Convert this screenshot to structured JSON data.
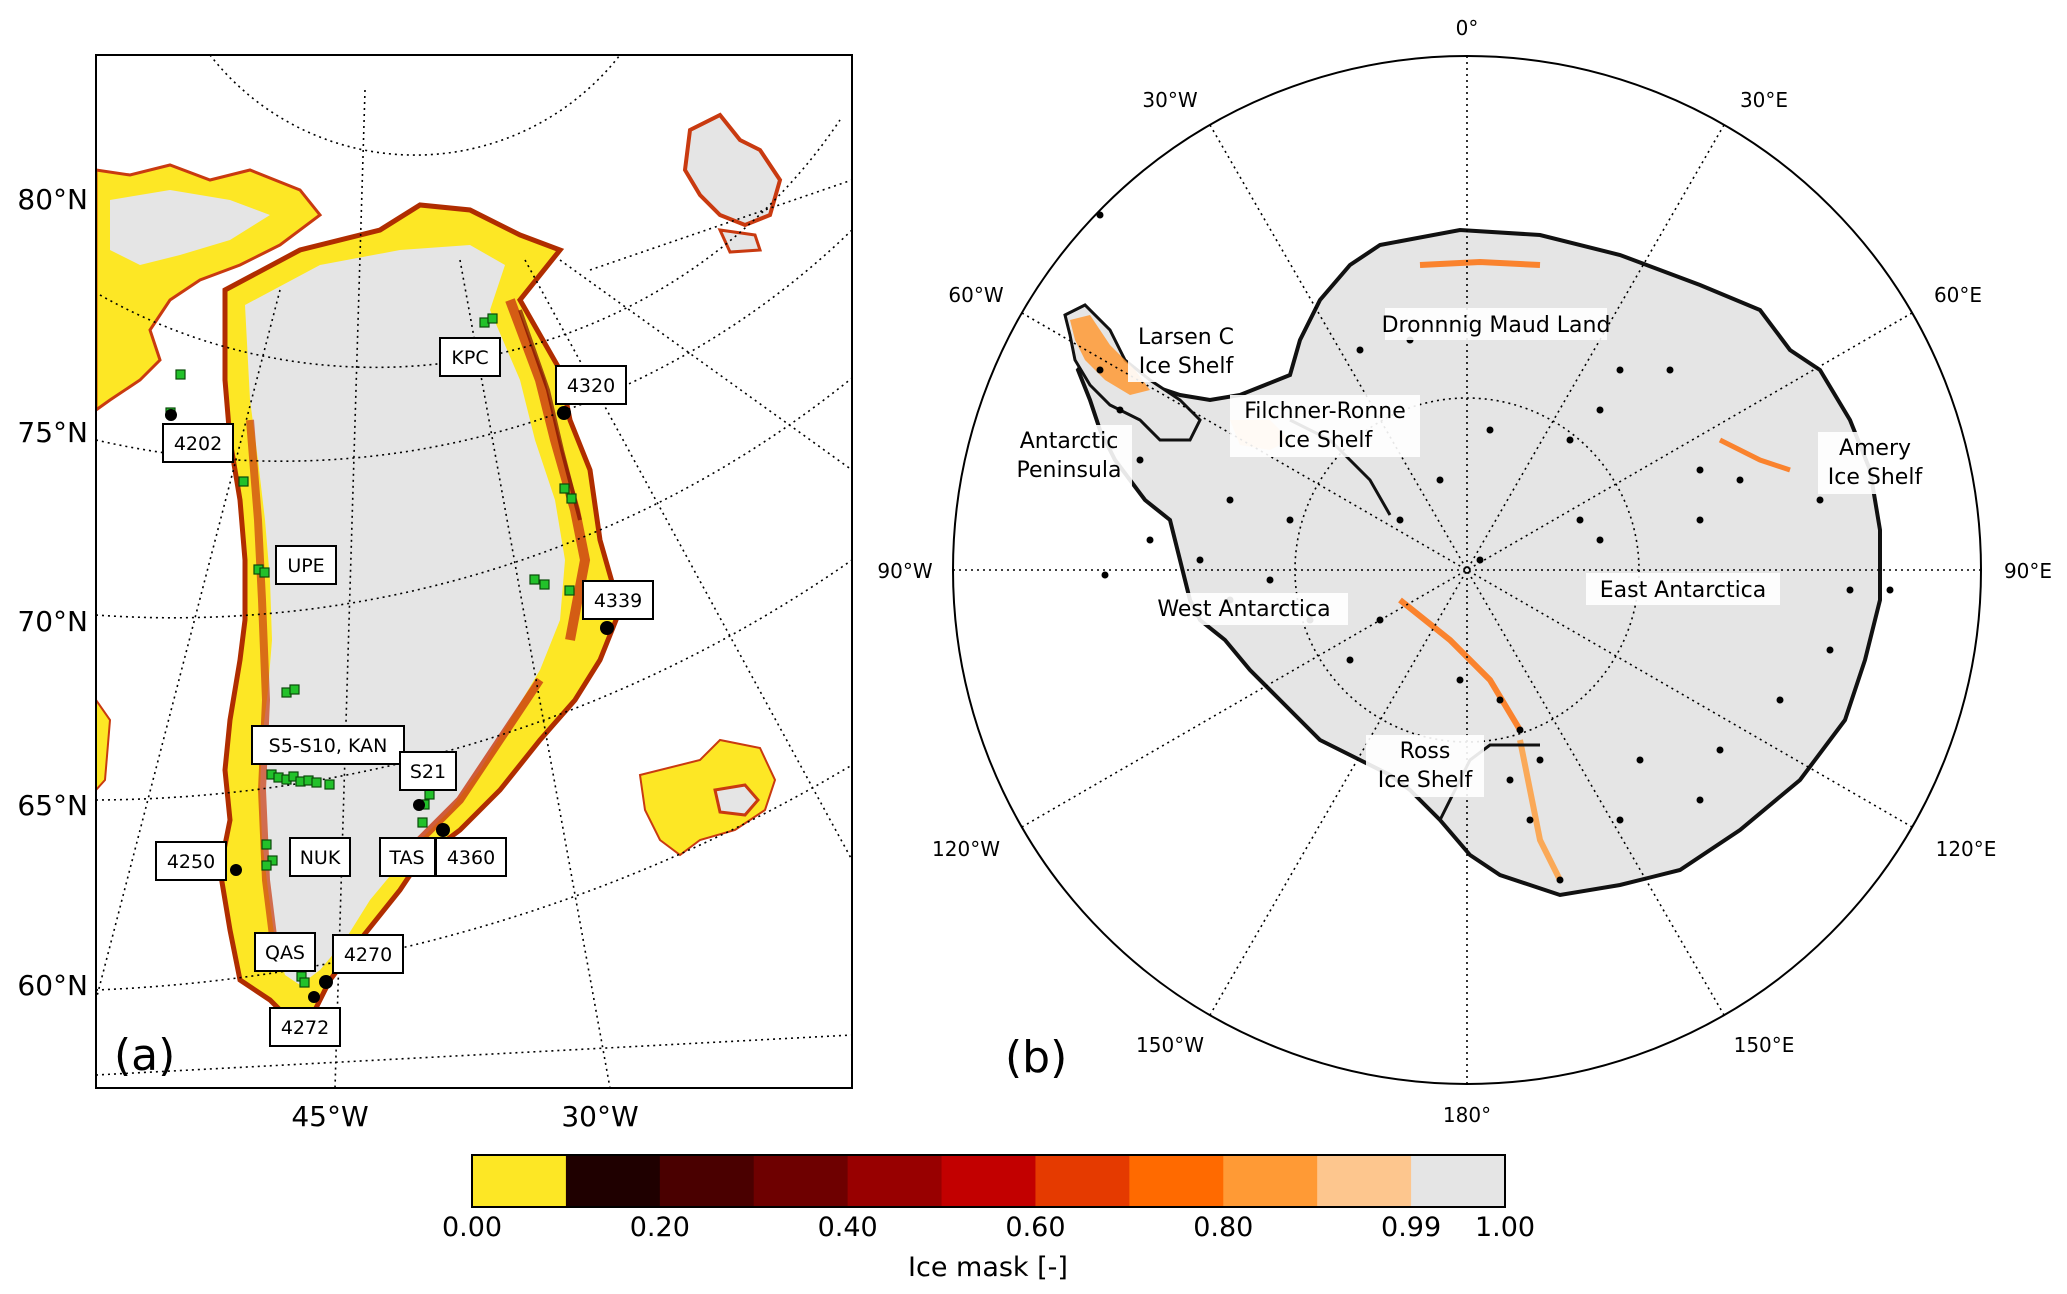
{
  "panel_a": {
    "label": "(a)",
    "lat_labels": [
      "80°N",
      "75°N",
      "70°N",
      "65°N",
      "60°N"
    ],
    "lon_labels": [
      "45°W",
      "30°W"
    ],
    "stations": [
      {
        "name": "KPC"
      },
      {
        "name": "4320"
      },
      {
        "name": "4202"
      },
      {
        "name": "UPE"
      },
      {
        "name": "4339"
      },
      {
        "name": "S5-S10, KAN"
      },
      {
        "name": "S21"
      },
      {
        "name": "4250"
      },
      {
        "name": "NUK"
      },
      {
        "name": "TAS"
      },
      {
        "name": "4360"
      },
      {
        "name": "QAS"
      },
      {
        "name": "4270"
      },
      {
        "name": "4272"
      }
    ]
  },
  "panel_b": {
    "label": "(b)",
    "lon_labels": [
      "0°",
      "30°E",
      "60°E",
      "90°E",
      "120°E",
      "150°E",
      "180°",
      "150°W",
      "120°W",
      "90°W",
      "60°W",
      "30°W"
    ],
    "regions": [
      {
        "lines": [
          "Dronnnig Maud Land"
        ]
      },
      {
        "lines": [
          "Larsen C",
          "Ice Shelf"
        ]
      },
      {
        "lines": [
          "Filchner-Ronne",
          "Ice Shelf"
        ]
      },
      {
        "lines": [
          "Antarctic",
          "Peninsula"
        ]
      },
      {
        "lines": [
          "Amery",
          "Ice Shelf"
        ]
      },
      {
        "lines": [
          "East Antarctica"
        ]
      },
      {
        "lines": [
          "West Antarctica"
        ]
      },
      {
        "lines": [
          "Ross",
          "Ice Shelf"
        ]
      }
    ]
  },
  "colorbar": {
    "title": "Ice mask [-]",
    "tick_labels": [
      "0.00",
      "0.20",
      "0.40",
      "0.60",
      "0.80",
      "0.99",
      "1.00"
    ],
    "bins": [
      {
        "color": "#fde725"
      },
      {
        "color": "#1f0000"
      },
      {
        "color": "#4a0000"
      },
      {
        "color": "#6e0000"
      },
      {
        "color": "#980000"
      },
      {
        "color": "#c20000"
      },
      {
        "color": "#e53a00"
      },
      {
        "color": "#ff6a00"
      },
      {
        "color": "#ff9a35"
      },
      {
        "color": "#fdc68e"
      },
      {
        "color": "#e5e5e5"
      }
    ]
  },
  "colors": {
    "land_ice": "#e5e5e5",
    "tundra": "#fde725",
    "margin": "#c93a10",
    "station_green": "#22c12a",
    "station_black": "#000000"
  }
}
